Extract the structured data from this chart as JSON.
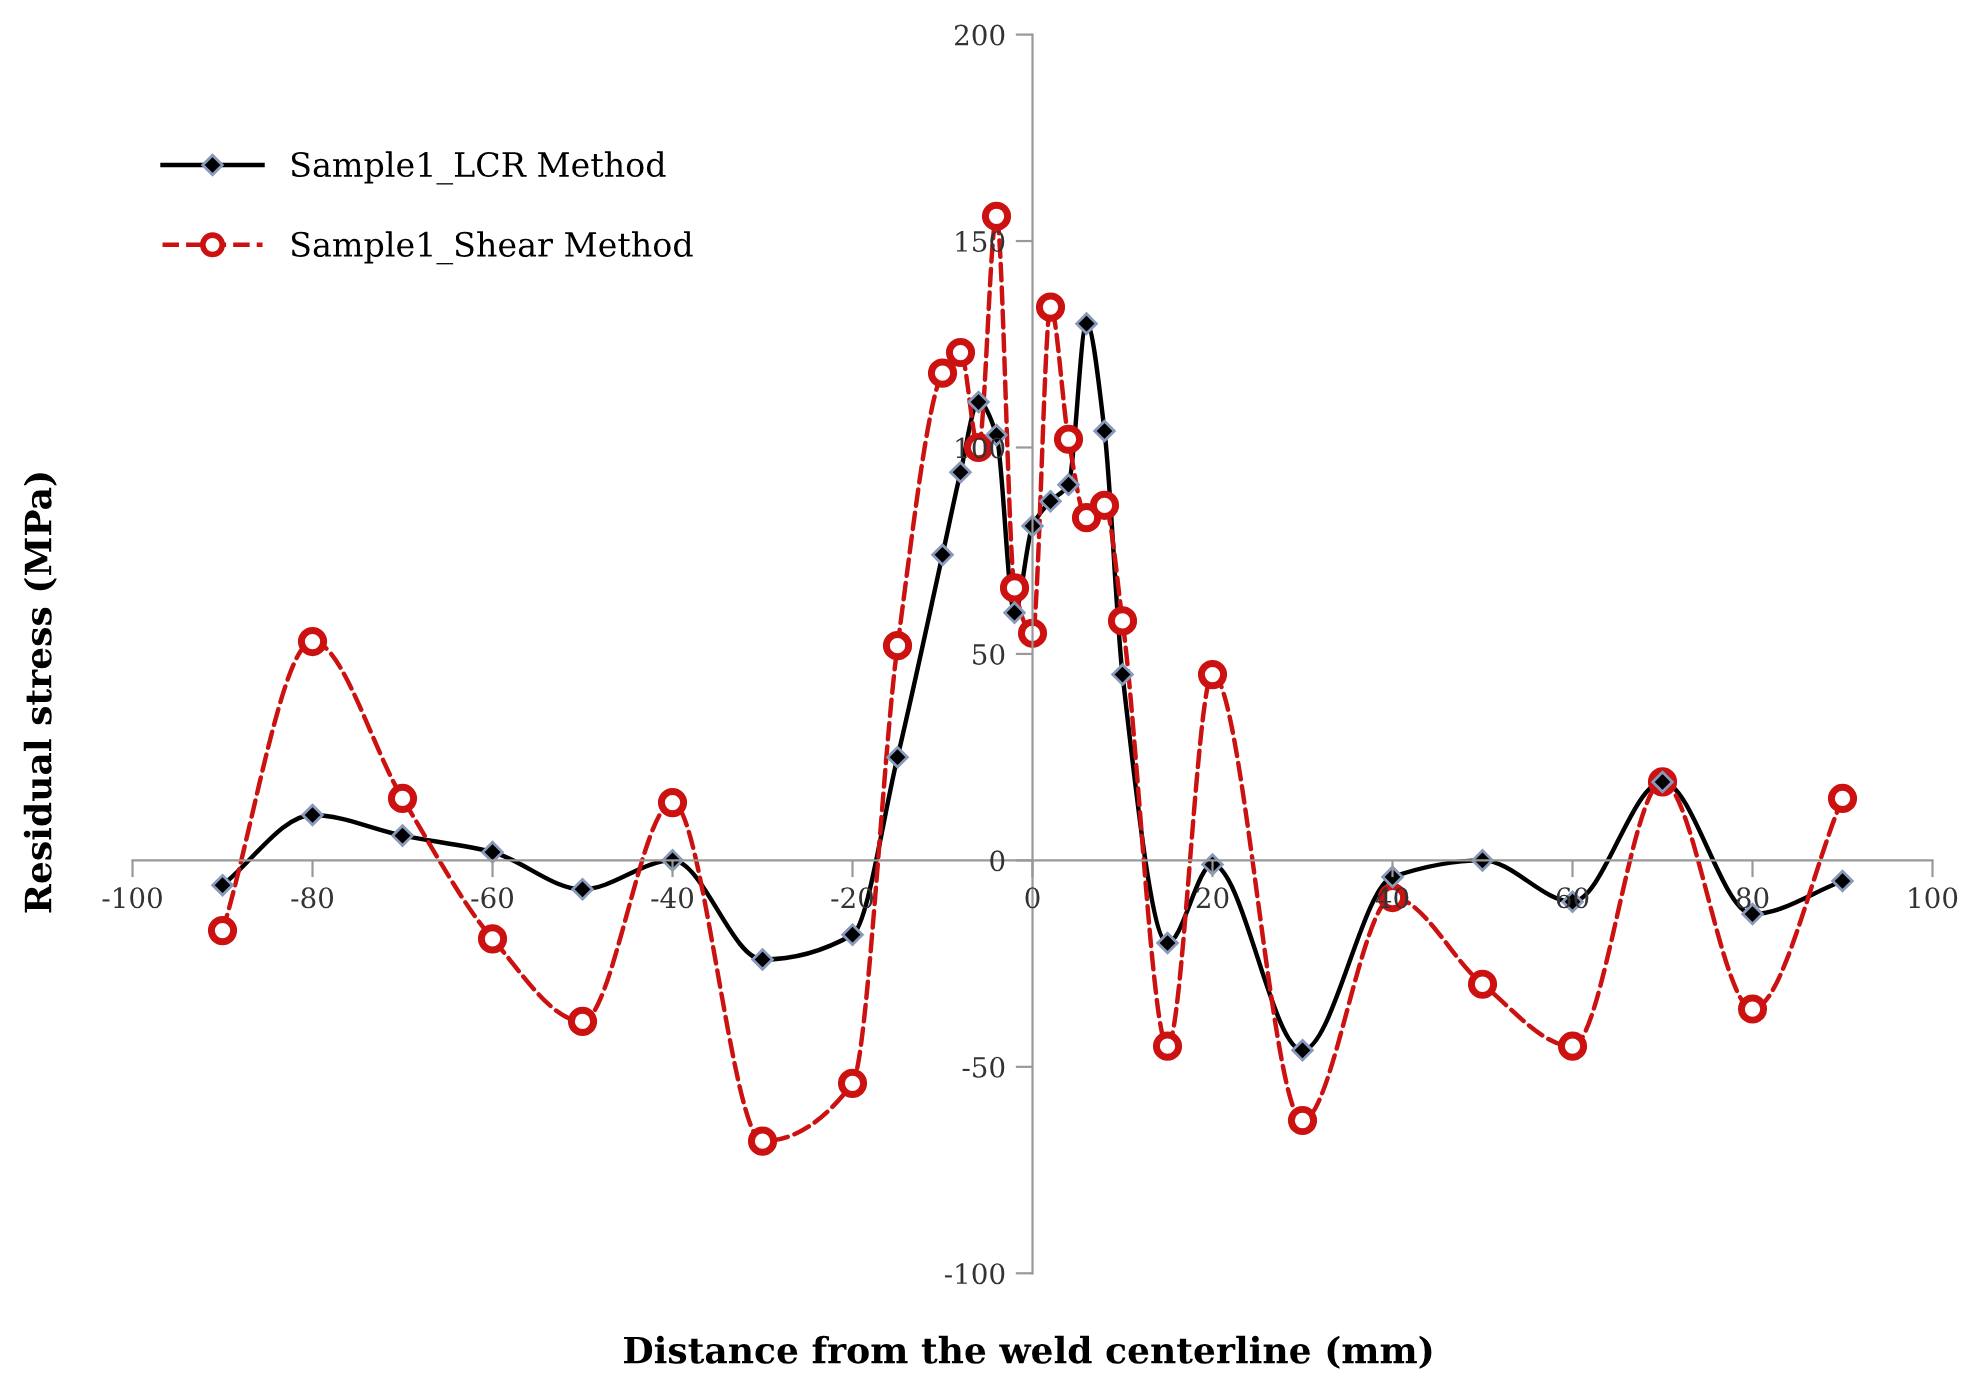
{
  "chart_data": {
    "type": "line",
    "xlabel": "Distance from the weld centerline (mm)",
    "ylabel": "Residual stress (MPa)",
    "xlim": [
      -100,
      100
    ],
    "ylim": [
      -100,
      200
    ],
    "xticks": [
      -100,
      -80,
      -60,
      -40,
      -20,
      0,
      20,
      40,
      60,
      80,
      100
    ],
    "yticks": [
      -100,
      -50,
      0,
      50,
      100,
      150,
      200
    ],
    "grid": false,
    "legend": "top left",
    "series": [
      {
        "name": "Sample1_LCR Method",
        "color": "#000000",
        "marker": "diamond",
        "line_style": "solid",
        "x": [
          -90,
          -80,
          -70,
          -60,
          -50,
          -40,
          -30,
          -20,
          -15,
          -10,
          -8,
          -6,
          -4,
          -2,
          0,
          2,
          4,
          6,
          8,
          10,
          15,
          20,
          30,
          40,
          50,
          60,
          70,
          80,
          90
        ],
        "values": [
          -6,
          11,
          6,
          2,
          -7,
          0,
          -24,
          -18,
          25,
          74,
          94,
          111,
          103,
          60,
          81,
          87,
          91,
          130,
          104,
          45,
          -20,
          -1,
          -46,
          -4,
          0,
          -10,
          19,
          -13,
          -5
        ]
      },
      {
        "name": "Sample1_Shear Method",
        "color": "#cc1111",
        "marker": "circle",
        "line_style": "dashed",
        "x": [
          -90,
          -80,
          -70,
          -60,
          -50,
          -40,
          -30,
          -20,
          -15,
          -10,
          -8,
          -6,
          -4,
          -2,
          0,
          2,
          4,
          6,
          8,
          10,
          15,
          20,
          30,
          40,
          50,
          60,
          70,
          80,
          90
        ],
        "values": [
          -17,
          53,
          15,
          -19,
          -39,
          14,
          -68,
          -54,
          52,
          118,
          123,
          100,
          156,
          66,
          55,
          134,
          102,
          83,
          86,
          58,
          -45,
          45,
          -63,
          -9,
          -30,
          -45,
          19,
          -36,
          15
        ]
      }
    ]
  }
}
